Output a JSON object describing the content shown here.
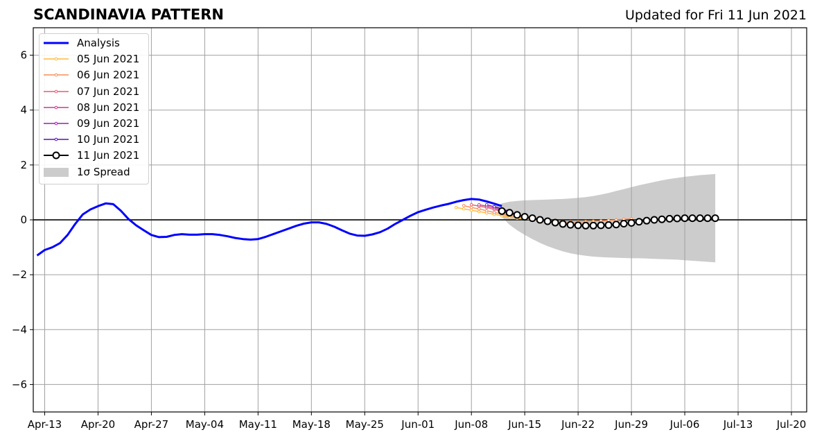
{
  "header": {
    "title": "SCANDINAVIA PATTERN",
    "updated": "Updated for Fri 11 Jun 2021"
  },
  "chart_data": {
    "type": "line",
    "title": "SCANDINAVIA PATTERN",
    "xlabel": "",
    "ylabel": "",
    "xlim": [
      "2021-04-11T12:00",
      "2021-07-22"
    ],
    "ylim": [
      -7,
      7
    ],
    "grid": true,
    "legend_position": "top-left",
    "x_ticks": [
      "Apr-13",
      "Apr-20",
      "Apr-27",
      "May-04",
      "May-11",
      "May-18",
      "May-25",
      "Jun-01",
      "Jun-08",
      "Jun-15",
      "Jun-22",
      "Jun-29",
      "Jul-06",
      "Jul-13",
      "Jul-20"
    ],
    "x_tick_dates": [
      "2021-04-13",
      "2021-04-20",
      "2021-04-27",
      "2021-05-04",
      "2021-05-11",
      "2021-05-18",
      "2021-05-25",
      "2021-06-01",
      "2021-06-08",
      "2021-06-15",
      "2021-06-22",
      "2021-06-29",
      "2021-07-06",
      "2021-07-13",
      "2021-07-20"
    ],
    "y_ticks": [
      6,
      4,
      2,
      0,
      -2,
      -4,
      -6
    ],
    "y_tick_labels": [
      "6",
      "4",
      "2",
      "0",
      "−2",
      "−4",
      "−6"
    ],
    "analysis": {
      "name": "Analysis",
      "color": "#0000ff",
      "start_date": "2021-04-12",
      "values": [
        -1.3,
        -1.1,
        -1.0,
        -0.85,
        -0.55,
        -0.15,
        0.2,
        0.38,
        0.5,
        0.6,
        0.57,
        0.33,
        0.03,
        -0.2,
        -0.38,
        -0.55,
        -0.63,
        -0.62,
        -0.55,
        -0.52,
        -0.54,
        -0.54,
        -0.52,
        -0.52,
        -0.55,
        -0.6,
        -0.66,
        -0.7,
        -0.72,
        -0.7,
        -0.62,
        -0.52,
        -0.42,
        -0.32,
        -0.22,
        -0.14,
        -0.09,
        -0.09,
        -0.15,
        -0.25,
        -0.38,
        -0.5,
        -0.57,
        -0.58,
        -0.53,
        -0.45,
        -0.32,
        -0.15,
        0.0,
        0.15,
        0.28,
        0.37,
        0.45,
        0.52,
        0.58,
        0.66,
        0.72,
        0.76,
        0.74,
        0.67,
        0.59,
        0.5
      ]
    },
    "forecasts": [
      {
        "name": "05 Jun 2021",
        "color": "#ffb938",
        "start_date": "2021-06-06",
        "values": [
          0.45,
          0.4,
          0.35,
          0.3,
          0.25,
          0.2,
          0.15,
          0.1,
          0.06,
          0.03,
          0.0,
          -0.02,
          -0.04,
          -0.05,
          -0.06,
          -0.07,
          -0.07,
          -0.06,
          -0.05,
          -0.04,
          -0.02,
          0.0
        ]
      },
      {
        "name": "06 Jun 2021",
        "color": "#f78d54",
        "start_date": "2021-06-07",
        "values": [
          0.52,
          0.45,
          0.4,
          0.33,
          0.27,
          0.21,
          0.16,
          0.11,
          0.07,
          0.03,
          0.0,
          -0.03,
          -0.05,
          -0.07,
          -0.08,
          -0.08,
          -0.07,
          -0.06,
          -0.04,
          -0.02,
          0.0,
          0.02,
          0.04
        ]
      },
      {
        "name": "07 Jun 2021",
        "color": "#e35a72",
        "start_date": "2021-06-08",
        "values": [
          0.55,
          0.5,
          0.45,
          0.38,
          0.3,
          0.23,
          0.16,
          0.1,
          0.05,
          0.0
        ]
      },
      {
        "name": "08 Jun 2021",
        "color": "#c43d8e",
        "start_date": "2021-06-09",
        "values": [
          0.55,
          0.5,
          0.43,
          0.35,
          0.27,
          0.18,
          0.1
        ]
      },
      {
        "name": "09 Jun 2021",
        "color": "#9a1fa8",
        "start_date": "2021-06-10",
        "values": [
          0.55,
          0.48,
          0.4,
          0.3,
          0.2
        ]
      },
      {
        "name": "10 Jun 2021",
        "color": "#5a0fb0",
        "start_date": "2021-06-11",
        "values": [
          0.48,
          0.4,
          0.3
        ]
      },
      {
        "name": "11 Jun 2021",
        "color": "#000000",
        "start_date": "2021-06-12",
        "values": [
          0.32,
          0.26,
          0.18,
          0.11,
          0.06,
          0.0,
          -0.05,
          -0.1,
          -0.15,
          -0.18,
          -0.2,
          -0.21,
          -0.21,
          -0.2,
          -0.19,
          -0.17,
          -0.14,
          -0.11,
          -0.07,
          -0.03,
          0.0,
          0.02,
          0.04,
          0.05,
          0.06,
          0.06,
          0.06,
          0.06,
          0.06
        ]
      }
    ],
    "spread": {
      "name": "1σ Spread",
      "color": "#cccccc",
      "start_date": "2021-06-11",
      "upper": [
        0.48,
        0.6,
        0.66,
        0.69,
        0.71,
        0.72,
        0.73,
        0.74,
        0.75,
        0.76,
        0.78,
        0.8,
        0.83,
        0.87,
        0.92,
        0.98,
        1.05,
        1.12,
        1.19,
        1.26,
        1.32,
        1.38,
        1.44,
        1.49,
        1.53,
        1.57,
        1.6,
        1.63,
        1.65,
        1.67
      ],
      "lower": [
        0.48,
        0.1,
        -0.18,
        -0.38,
        -0.55,
        -0.7,
        -0.84,
        -0.96,
        -1.06,
        -1.15,
        -1.22,
        -1.27,
        -1.31,
        -1.34,
        -1.36,
        -1.37,
        -1.38,
        -1.39,
        -1.4,
        -1.4,
        -1.41,
        -1.42,
        -1.43,
        -1.44,
        -1.45,
        -1.47,
        -1.49,
        -1.51,
        -1.53,
        -1.55
      ]
    }
  }
}
